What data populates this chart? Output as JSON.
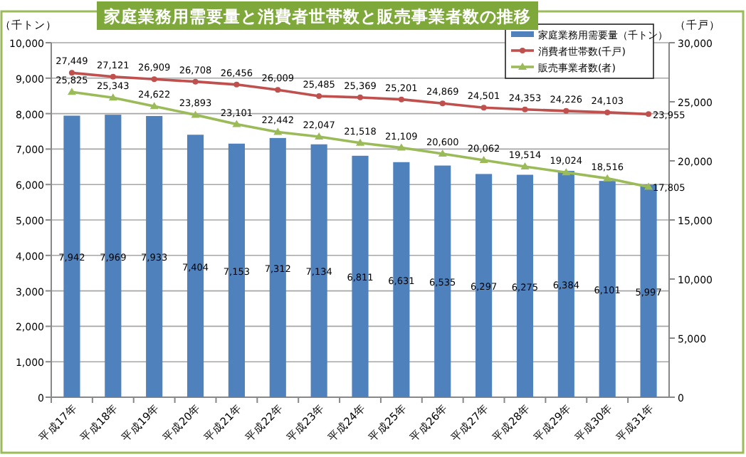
{
  "chart_data": {
    "type": "bar",
    "title": "家庭業務用需要量と消費者世帯数と販売事業者数の推移",
    "ylabel": "（千トン）",
    "y2label": "（千戸）",
    "categories": [
      "平成17年",
      "平成18年",
      "平成19年",
      "平成20年",
      "平成21年",
      "平成22年",
      "平成23年",
      "平成24年",
      "平成25年",
      "平成26年",
      "平成27年",
      "平成28年",
      "平成29年",
      "平成30年",
      "平成31年"
    ],
    "series": [
      {
        "name": "家庭業務用需要量（千トン）",
        "color": "#4f81bd",
        "values": [
          7942,
          7969,
          7933,
          7404,
          7153,
          7312,
          7134,
          6811,
          6631,
          6535,
          6297,
          6275,
          6384,
          6101,
          5997
        ],
        "value_labels": [
          "7,942",
          "7,969",
          "7,933",
          "7,404",
          "7,153",
          "7,312",
          "7,134",
          "6,811",
          "6,631",
          "6,535",
          "6,297",
          "6,275",
          "6,384",
          "6,101",
          "5,997"
        ]
      },
      {
        "name": "消費者世帯数(千戸)",
        "type": "line",
        "axis": "y2",
        "color": "#c0504d",
        "marker": "circle",
        "values": [
          27449,
          27121,
          26909,
          26708,
          26456,
          26009,
          25485,
          25369,
          25201,
          24869,
          24501,
          24353,
          24226,
          24103,
          23955
        ],
        "value_labels": [
          "27,449",
          "27,121",
          "26,909",
          "26,708",
          "26,456",
          "26,009",
          "25,485",
          "25,369",
          "25,201",
          "24,869",
          "24,501",
          "24,353",
          "24,226",
          "24,103",
          "23,955"
        ]
      },
      {
        "name": "販売事業者数(者)",
        "type": "line",
        "axis": "y2",
        "color": "#9bbb59",
        "marker": "triangle",
        "values": [
          25825,
          25343,
          24622,
          23893,
          23101,
          22442,
          22047,
          21518,
          21109,
          20600,
          20062,
          19514,
          19024,
          18516,
          17805
        ],
        "value_labels": [
          "25,825",
          "25,343",
          "24,622",
          "23,893",
          "23,101",
          "22,442",
          "22,047",
          "21,518",
          "21,109",
          "20,600",
          "20,062",
          "19,514",
          "19,024",
          "18,516",
          "17,805"
        ]
      }
    ],
    "ylim": [
      0,
      10000
    ],
    "yticks": [
      {
        "value": 0,
        "label": "0"
      },
      {
        "value": 1000,
        "label": "1,000"
      },
      {
        "value": 2000,
        "label": "2,000"
      },
      {
        "value": 3000,
        "label": "3,000"
      },
      {
        "value": 4000,
        "label": "4,000"
      },
      {
        "value": 5000,
        "label": "5,000"
      },
      {
        "value": 6000,
        "label": "6,000"
      },
      {
        "value": 7000,
        "label": "7,000"
      },
      {
        "value": 8000,
        "label": "8,000"
      },
      {
        "value": 9000,
        "label": "9,000"
      },
      {
        "value": 10000,
        "label": "10,000"
      }
    ],
    "y2lim": [
      0,
      30000
    ],
    "y2ticks": [
      {
        "value": 0,
        "label": "0"
      },
      {
        "value": 5000,
        "label": "5,000"
      },
      {
        "value": 10000,
        "label": "10,000"
      },
      {
        "value": 15000,
        "label": "15,000"
      },
      {
        "value": 20000,
        "label": "20,000"
      },
      {
        "value": 25000,
        "label": "25,000"
      },
      {
        "value": 30000,
        "label": "30,000"
      }
    ],
    "grid": "y",
    "legend": "top right"
  }
}
